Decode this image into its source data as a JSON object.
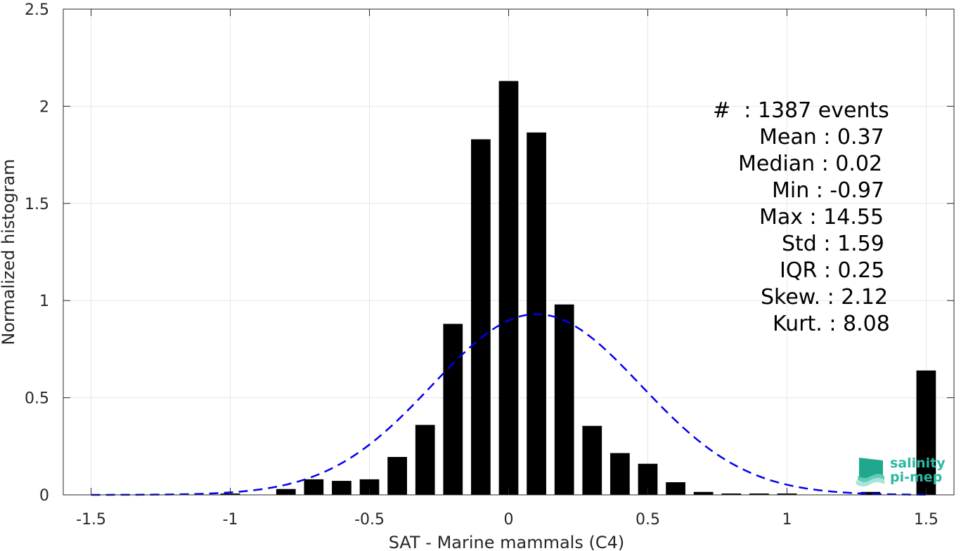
{
  "chart_data": {
    "type": "bar",
    "xlabel": "SAT - Marine mammals (C4)",
    "ylabel": "Normalized histogram",
    "xlim": [
      -1.6,
      1.6
    ],
    "ylim": [
      0,
      2.5
    ],
    "grid": true,
    "x_ticks": [
      -1.5,
      -1,
      -0.5,
      0,
      0.5,
      1,
      1.5
    ],
    "x_tick_labels": [
      "-1.5",
      "-1",
      "-0.5",
      "0",
      "0.5",
      "1",
      "1.5"
    ],
    "y_ticks": [
      0,
      0.5,
      1,
      1.5,
      2,
      2.5
    ],
    "y_tick_labels": [
      "0",
      "0.5",
      "1",
      "1.5",
      "2",
      "2.5"
    ],
    "bin_width": 0.1,
    "bar_width": 0.07,
    "bars": [
      {
        "x": -1.5,
        "y": 0
      },
      {
        "x": -1.0,
        "y": 0.007
      },
      {
        "x": -0.8,
        "y": 0.03
      },
      {
        "x": -0.7,
        "y": 0.08
      },
      {
        "x": -0.6,
        "y": 0.072
      },
      {
        "x": -0.5,
        "y": 0.08
      },
      {
        "x": -0.4,
        "y": 0.195
      },
      {
        "x": -0.3,
        "y": 0.36
      },
      {
        "x": -0.2,
        "y": 0.88
      },
      {
        "x": -0.1,
        "y": 1.83
      },
      {
        "x": 0.0,
        "y": 2.13
      },
      {
        "x": 0.1,
        "y": 1.865
      },
      {
        "x": 0.2,
        "y": 0.98
      },
      {
        "x": 0.3,
        "y": 0.355
      },
      {
        "x": 0.4,
        "y": 0.215
      },
      {
        "x": 0.5,
        "y": 0.16
      },
      {
        "x": 0.6,
        "y": 0.065
      },
      {
        "x": 0.7,
        "y": 0.015
      },
      {
        "x": 0.8,
        "y": 0.007
      },
      {
        "x": 0.9,
        "y": 0.007
      },
      {
        "x": 1.0,
        "y": 0.007
      },
      {
        "x": 1.3,
        "y": 0.015
      },
      {
        "x": 1.5,
        "y": 0.64
      }
    ],
    "fit_curve": {
      "style": "dashed",
      "color": "#0000ee",
      "mean": 0.1,
      "peak": 0.93,
      "sigma": 0.375
    },
    "bar_color": "#000000"
  },
  "stats": {
    "lines": [
      "#  : 1387 events",
      "Mean : 0.37",
      "Median : 0.02",
      "Min : -0.97",
      "Max : 14.55",
      "Std : 1.59",
      "IQR : 0.25",
      "Skew. : 2.12",
      "Kurt. : 8.08"
    ]
  },
  "logo": {
    "line1": "salinity",
    "line2": "pi-mep",
    "color": "#2bb8a0"
  }
}
